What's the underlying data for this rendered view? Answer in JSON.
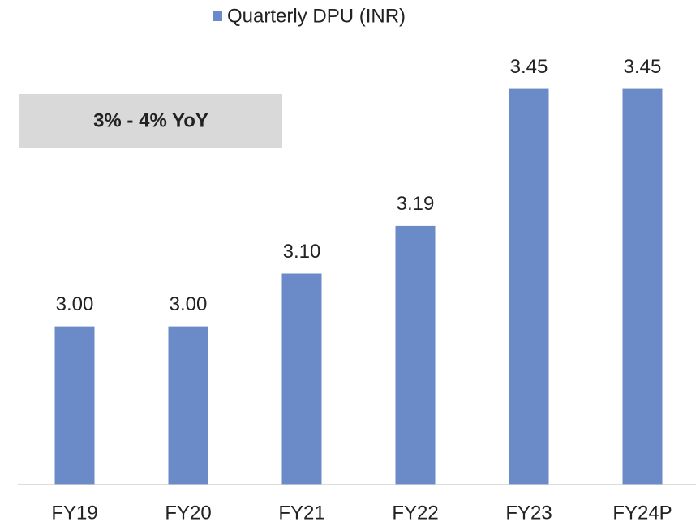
{
  "chart_data": {
    "type": "bar",
    "categories": [
      "FY19",
      "FY20",
      "FY21",
      "FY22",
      "FY23",
      "FY24P"
    ],
    "series": [
      {
        "name": "Quarterly DPU (INR)",
        "color": "#6a8bc8",
        "values": [
          3.0,
          3.0,
          3.1,
          3.19,
          3.45,
          3.45
        ],
        "value_labels": [
          "3.00",
          "3.00",
          "3.10",
          "3.19",
          "3.45",
          "3.45"
        ]
      }
    ],
    "annotation": "3% - 4% YoY",
    "ylim": [
      2.7,
      3.5
    ],
    "legend": "top"
  }
}
